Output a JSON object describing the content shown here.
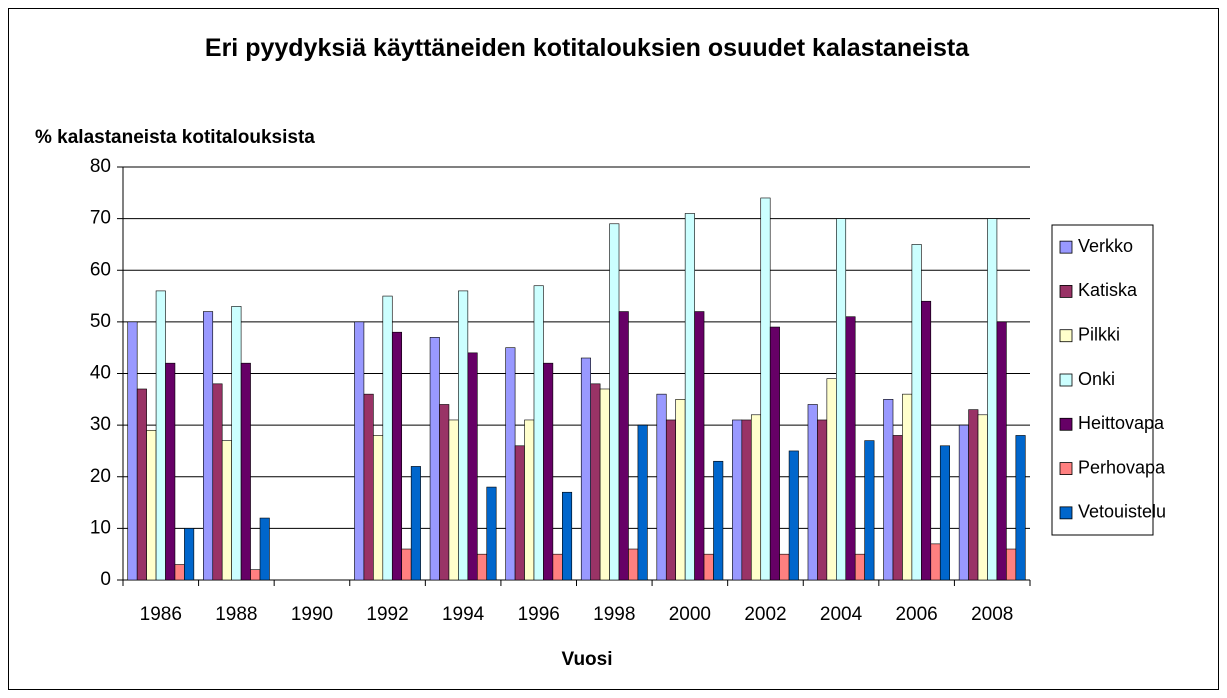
{
  "chart_data": {
    "type": "bar",
    "title": "Eri pyydyksiä käyttäneiden kotitalouksien osuudet kalastaneista",
    "y_label": "% kalastaneista kotitalouksista",
    "x_label": "Vuosi",
    "categories": [
      "1986",
      "1988",
      "1990",
      "1992",
      "1994",
      "1996",
      "1998",
      "2000",
      "2002",
      "2004",
      "2006",
      "2008"
    ],
    "series": [
      {
        "name": "Verkko",
        "color": "#9999ff",
        "values": [
          50,
          52,
          null,
          50,
          47,
          45,
          43,
          36,
          31,
          34,
          35,
          30
        ]
      },
      {
        "name": "Katiska",
        "color": "#993366",
        "values": [
          37,
          38,
          null,
          36,
          34,
          26,
          38,
          31,
          31,
          31,
          28,
          33
        ]
      },
      {
        "name": "Pilkki",
        "color": "#ffffcc",
        "values": [
          29,
          27,
          null,
          28,
          31,
          31,
          37,
          35,
          32,
          39,
          36,
          32
        ]
      },
      {
        "name": "Onki",
        "color": "#ccffff",
        "values": [
          56,
          53,
          null,
          55,
          56,
          57,
          69,
          71,
          74,
          70,
          65,
          70
        ]
      },
      {
        "name": "Heittovapa",
        "color": "#660066",
        "values": [
          42,
          42,
          null,
          48,
          44,
          42,
          52,
          52,
          49,
          51,
          54,
          50
        ]
      },
      {
        "name": "Perhovapa",
        "color": "#ff8080",
        "values": [
          3,
          2,
          null,
          6,
          5,
          5,
          6,
          5,
          5,
          5,
          7,
          6
        ]
      },
      {
        "name": "Vetouistelu",
        "color": "#0066cc",
        "values": [
          10,
          12,
          null,
          22,
          18,
          17,
          30,
          23,
          25,
          27,
          26,
          28
        ]
      }
    ],
    "ylim": [
      0,
      80
    ],
    "yticks": [
      0,
      10,
      20,
      30,
      40,
      50,
      60,
      70,
      80
    ],
    "grid": true,
    "legend": "right"
  }
}
